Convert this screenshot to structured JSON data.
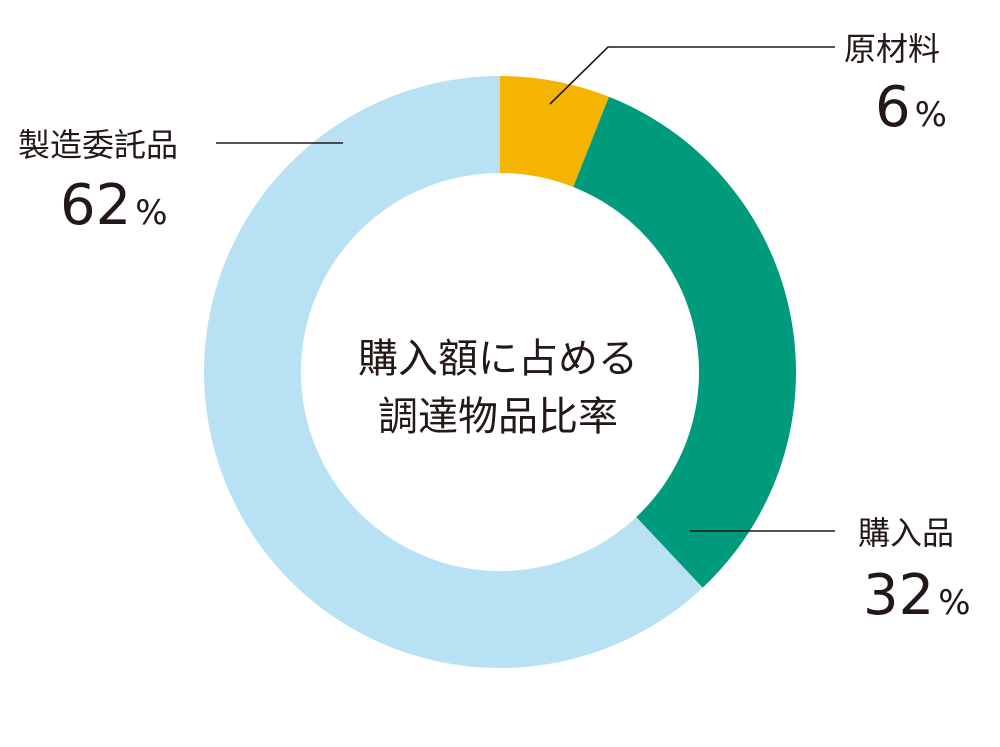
{
  "chart_data": {
    "type": "pie",
    "donut": true,
    "center_title": [
      "購入額に占める",
      "調達物品比率"
    ],
    "unit": "%",
    "slices": [
      {
        "label": "原材料",
        "value": 6,
        "color": "#f5b400"
      },
      {
        "label": "購入品",
        "value": 32,
        "color": "#009b7d"
      },
      {
        "label": "製造委託品",
        "value": 62,
        "color": "#b8e1f4"
      }
    ]
  }
}
